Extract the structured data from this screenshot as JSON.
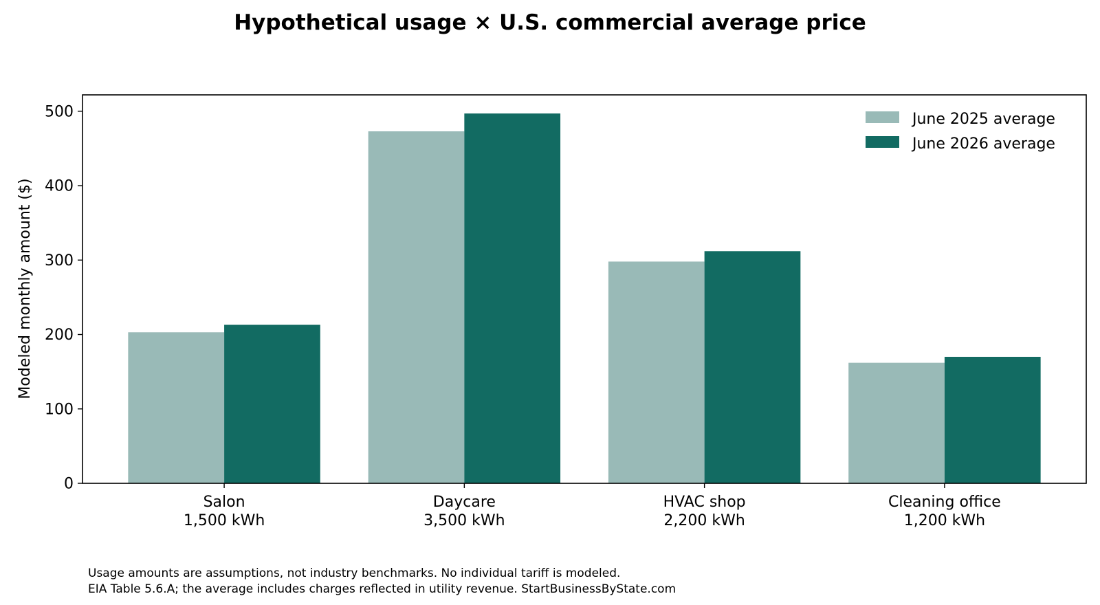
{
  "chart_data": {
    "type": "bar",
    "title": "Hypothetical usage × U.S. commercial average price",
    "xlabel": "",
    "ylabel": "Modeled monthly amount ($)",
    "ylim": [
      0,
      522
    ],
    "yticks": [
      0,
      100,
      200,
      300,
      400,
      500
    ],
    "grid": false,
    "legend_position": "top-right",
    "categories": [
      {
        "name": "Salon",
        "usage": "1,500 kWh"
      },
      {
        "name": "Daycare",
        "usage": "3,500 kWh"
      },
      {
        "name": "HVAC shop",
        "usage": "2,200 kWh"
      },
      {
        "name": "Cleaning office",
        "usage": "1,200 kWh"
      }
    ],
    "series": [
      {
        "name": "June 2025 average",
        "color": "#99bab7",
        "values": [
          203,
          473,
          298,
          162
        ]
      },
      {
        "name": "June 2026 average",
        "color": "#126b62",
        "values": [
          213,
          497,
          312,
          170
        ]
      }
    ],
    "notes": [
      "Usage amounts are assumptions, not industry benchmarks. No individual tariff is modeled.",
      "EIA Table 5.6.A; the average includes charges reflected in utility revenue. StartBusinessByState.com"
    ]
  }
}
